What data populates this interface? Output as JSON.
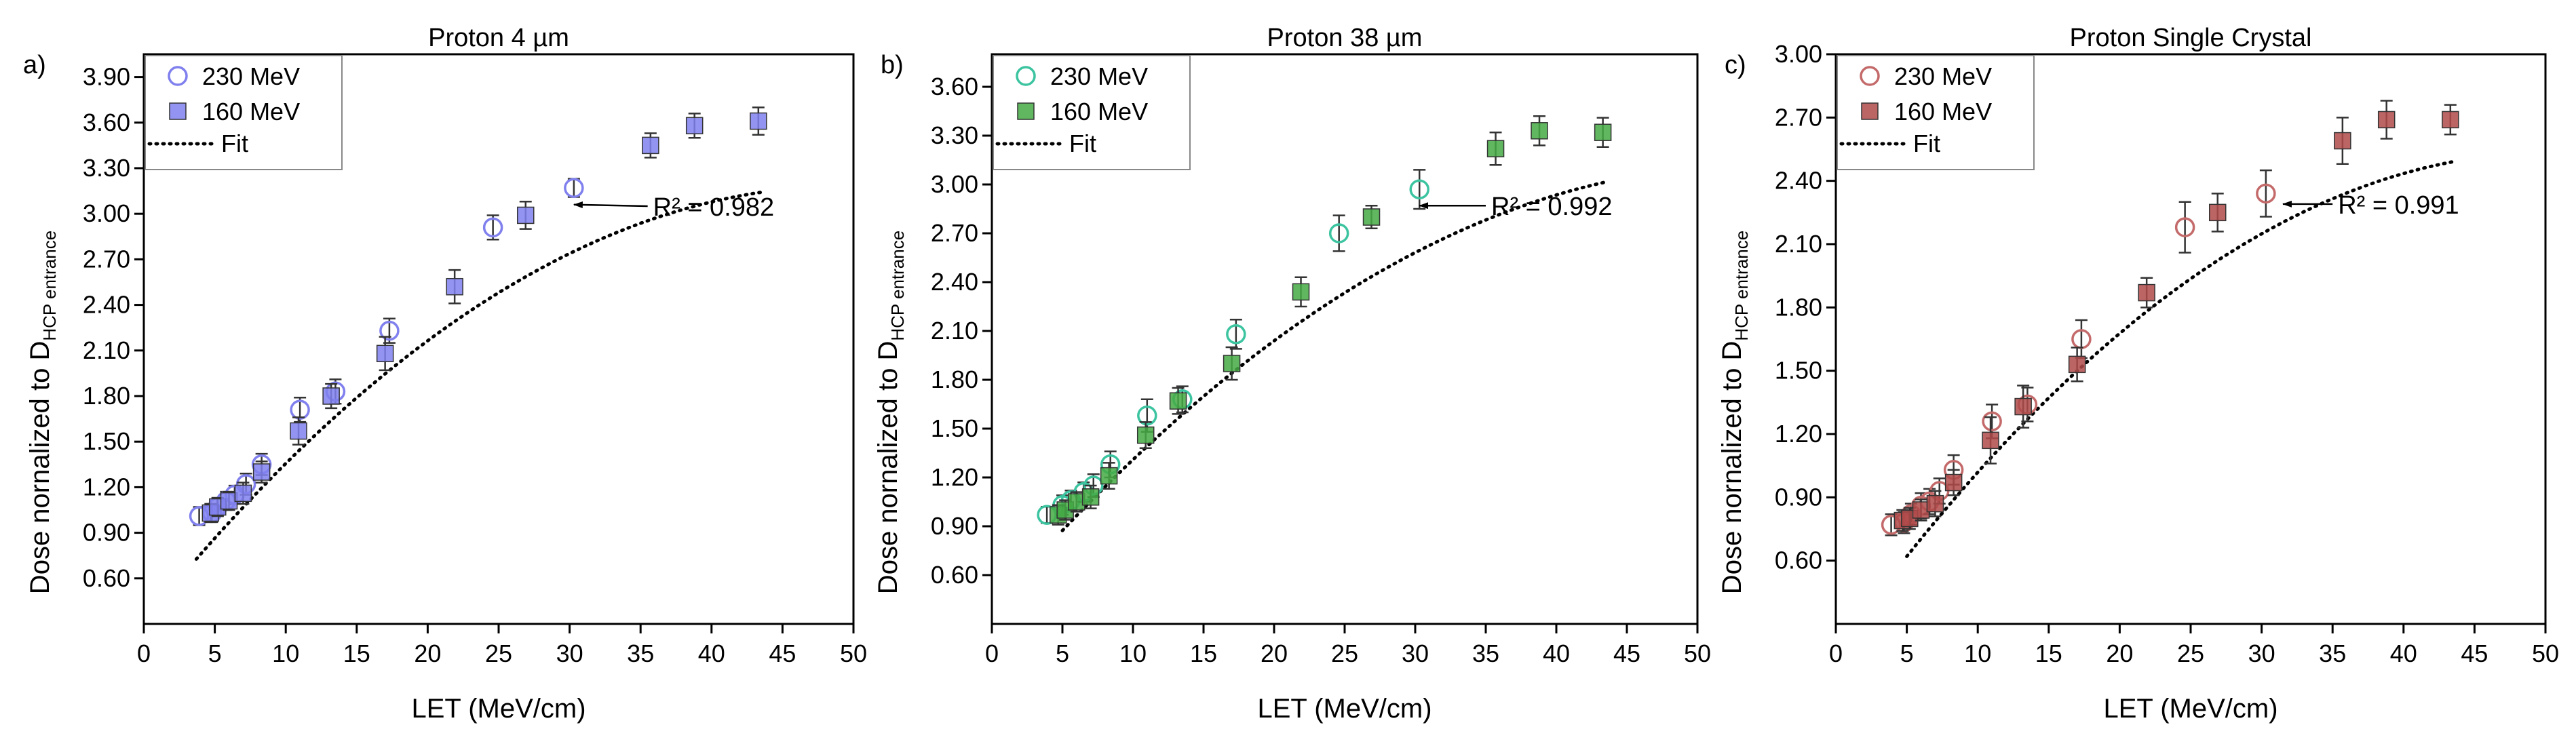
{
  "figure": {
    "xlabel": "LET (MeV/cm)",
    "ylabel_main": "Dose nornalized to D",
    "ylabel_sub": "HCP entrance"
  },
  "chart_data": [
    {
      "type": "scatter",
      "panel_label": "a)",
      "title": "Proton 4 µm",
      "xlabel": "LET (MeV/cm)",
      "ylabel": "Dose nornalized to D HCP entrance",
      "xlim": [
        0,
        50
      ],
      "ylim": [
        0.3,
        4.05
      ],
      "xticks": [
        0,
        5,
        10,
        15,
        20,
        25,
        30,
        35,
        40,
        45,
        50
      ],
      "yticks": [
        0.6,
        0.9,
        1.2,
        1.5,
        1.8,
        2.1,
        2.4,
        2.7,
        3.0,
        3.3,
        3.6,
        3.9
      ],
      "ytick_labels": [
        "0.60",
        "0.90",
        "1.20",
        "1.50",
        "1.80",
        "2.10",
        "2.40",
        "2.70",
        "3.00",
        "3.30",
        "3.60",
        "3.90"
      ],
      "color": "#8080ee",
      "legend_position": "top-left",
      "legend": [
        "230 MeV",
        "160 MeV",
        "Fit"
      ],
      "r2_text": "R² = 0.982",
      "r2_arrow_from": [
        35.5,
        3.05
      ],
      "r2_arrow_to": [
        30.3,
        3.06
      ],
      "fit": {
        "a": -0.00117,
        "b": 0.1159,
        "c": 0.314,
        "xrange": [
          3.7,
          43.5
        ]
      },
      "series": [
        {
          "name": "230 MeV",
          "marker": "open-circle",
          "x": [
            3.9,
            4.8,
            5.2,
            5.8,
            6.4,
            7.2,
            8.3,
            11.0,
            13.5,
            17.3,
            24.6,
            30.3
          ],
          "y": [
            1.01,
            1.03,
            1.07,
            1.11,
            1.15,
            1.22,
            1.35,
            1.71,
            1.83,
            2.23,
            2.91,
            3.17
          ],
          "err": [
            0.06,
            0.06,
            0.06,
            0.06,
            0.06,
            0.07,
            0.07,
            0.08,
            0.08,
            0.08,
            0.08,
            0.06
          ]
        },
        {
          "name": "160 MeV",
          "marker": "filled-square",
          "x": [
            4.7,
            5.2,
            6.0,
            7.0,
            8.3,
            10.9,
            13.2,
            17.0,
            21.9,
            26.9,
            35.7,
            38.8,
            43.3
          ],
          "y": [
            1.03,
            1.07,
            1.11,
            1.16,
            1.3,
            1.57,
            1.8,
            2.08,
            2.52,
            2.99,
            3.45,
            3.58,
            3.61
          ],
          "err": [
            0.06,
            0.06,
            0.06,
            0.07,
            0.07,
            0.09,
            0.08,
            0.11,
            0.11,
            0.09,
            0.08,
            0.08,
            0.09
          ]
        }
      ]
    },
    {
      "type": "scatter",
      "panel_label": "b)",
      "title": "Proton 38 µm",
      "xlabel": "LET (MeV/cm)",
      "ylabel": "Dose nornalized to D HCP entrance",
      "xlim": [
        0,
        50
      ],
      "ylim": [
        0.3,
        3.8
      ],
      "xticks": [
        0,
        5,
        10,
        15,
        20,
        25,
        30,
        35,
        40,
        45,
        50
      ],
      "yticks": [
        0.6,
        0.9,
        1.2,
        1.5,
        1.8,
        2.1,
        2.4,
        2.7,
        3.0,
        3.3,
        3.6
      ],
      "ytick_labels": [
        "0.60",
        "0.90",
        "1.20",
        "1.50",
        "1.80",
        "2.10",
        "2.40",
        "2.70",
        "3.00",
        "3.30",
        "3.60"
      ],
      "color": "#3cc4a0",
      "color_filled": "#44aa44",
      "legend_position": "top-left",
      "legend": [
        "230 MeV",
        "160 MeV",
        "Fit"
      ],
      "r2_text": "R² = 0.992",
      "r2_arrow_from": [
        35.0,
        2.87
      ],
      "r2_arrow_to": [
        30.3,
        2.87
      ],
      "fit": {
        "a": -0.00094,
        "b": 0.1012,
        "c": 0.3914,
        "xrange": [
          5.0,
          43.5
        ]
      },
      "series": [
        {
          "name": "230 MeV",
          "marker": "open-circle",
          "x": [
            3.9,
            5.0,
            5.6,
            6.5,
            7.2,
            8.4,
            11.0,
            13.5,
            17.3,
            24.6,
            30.3
          ],
          "y": [
            0.97,
            1.03,
            1.06,
            1.11,
            1.15,
            1.28,
            1.58,
            1.68,
            2.08,
            2.7,
            2.97
          ],
          "err": [
            0.05,
            0.06,
            0.06,
            0.06,
            0.07,
            0.08,
            0.1,
            0.08,
            0.09,
            0.11,
            0.12
          ]
        },
        {
          "name": "160 MeV",
          "marker": "filled-square",
          "x": [
            4.7,
            5.2,
            6.0,
            7.0,
            8.3,
            10.9,
            13.2,
            17.0,
            21.9,
            26.9,
            35.7,
            38.8,
            43.3
          ],
          "y": [
            0.97,
            1.0,
            1.05,
            1.08,
            1.21,
            1.46,
            1.67,
            1.9,
            2.34,
            2.8,
            3.22,
            3.33,
            3.32
          ],
          "err": [
            0.06,
            0.06,
            0.06,
            0.07,
            0.08,
            0.08,
            0.08,
            0.1,
            0.09,
            0.07,
            0.1,
            0.09,
            0.09
          ]
        }
      ]
    },
    {
      "type": "scatter",
      "panel_label": "c)",
      "title": "Proton Single Crystal",
      "xlabel": "LET (MeV/cm)",
      "ylabel": "Dose nornalized to D HCP entrance",
      "xlim": [
        0,
        50
      ],
      "ylim": [
        0.3,
        3.0
      ],
      "xticks": [
        0,
        5,
        10,
        15,
        20,
        25,
        30,
        35,
        40,
        45,
        50
      ],
      "yticks": [
        0.6,
        0.9,
        1.2,
        1.5,
        1.8,
        2.1,
        2.4,
        2.7,
        3.0
      ],
      "ytick_labels": [
        "0.60",
        "0.90",
        "1.20",
        "1.50",
        "1.80",
        "2.10",
        "2.40",
        "2.70",
        "3.00"
      ],
      "color": "#c46a6a",
      "color_filled": "#b04a4a",
      "legend_position": "top-left",
      "legend": [
        "230 MeV",
        "160 MeV",
        "Fit"
      ],
      "r2_text": "R² = 0.991",
      "r2_arrow_from": [
        35.0,
        2.29
      ],
      "r2_arrow_to": [
        31.5,
        2.29
      ],
      "fit": {
        "a": -0.00093,
        "b": 0.0937,
        "c": 0.1748,
        "xrange": [
          5.0,
          43.5
        ]
      },
      "series": [
        {
          "name": "230 MeV",
          "marker": "open-circle",
          "x": [
            3.9,
            4.8,
            5.3,
            6.0,
            6.6,
            7.3,
            8.3,
            11.0,
            13.5,
            17.3,
            24.6,
            30.3
          ],
          "y": [
            0.77,
            0.78,
            0.82,
            0.86,
            0.88,
            0.93,
            1.03,
            1.26,
            1.34,
            1.65,
            2.18,
            2.34
          ],
          "err": [
            0.05,
            0.05,
            0.05,
            0.06,
            0.06,
            0.06,
            0.07,
            0.08,
            0.08,
            0.09,
            0.12,
            0.11
          ]
        },
        {
          "name": "160 MeV",
          "marker": "filled-square",
          "x": [
            4.7,
            5.2,
            6.0,
            7.0,
            8.3,
            10.9,
            13.2,
            17.0,
            21.9,
            26.9,
            35.7,
            38.8,
            43.3
          ],
          "y": [
            0.79,
            0.8,
            0.84,
            0.87,
            0.97,
            1.17,
            1.33,
            1.53,
            1.87,
            2.25,
            2.59,
            2.69,
            2.69
          ],
          "err": [
            0.05,
            0.05,
            0.05,
            0.06,
            0.06,
            0.11,
            0.1,
            0.08,
            0.07,
            0.09,
            0.11,
            0.09,
            0.07
          ]
        }
      ]
    }
  ]
}
